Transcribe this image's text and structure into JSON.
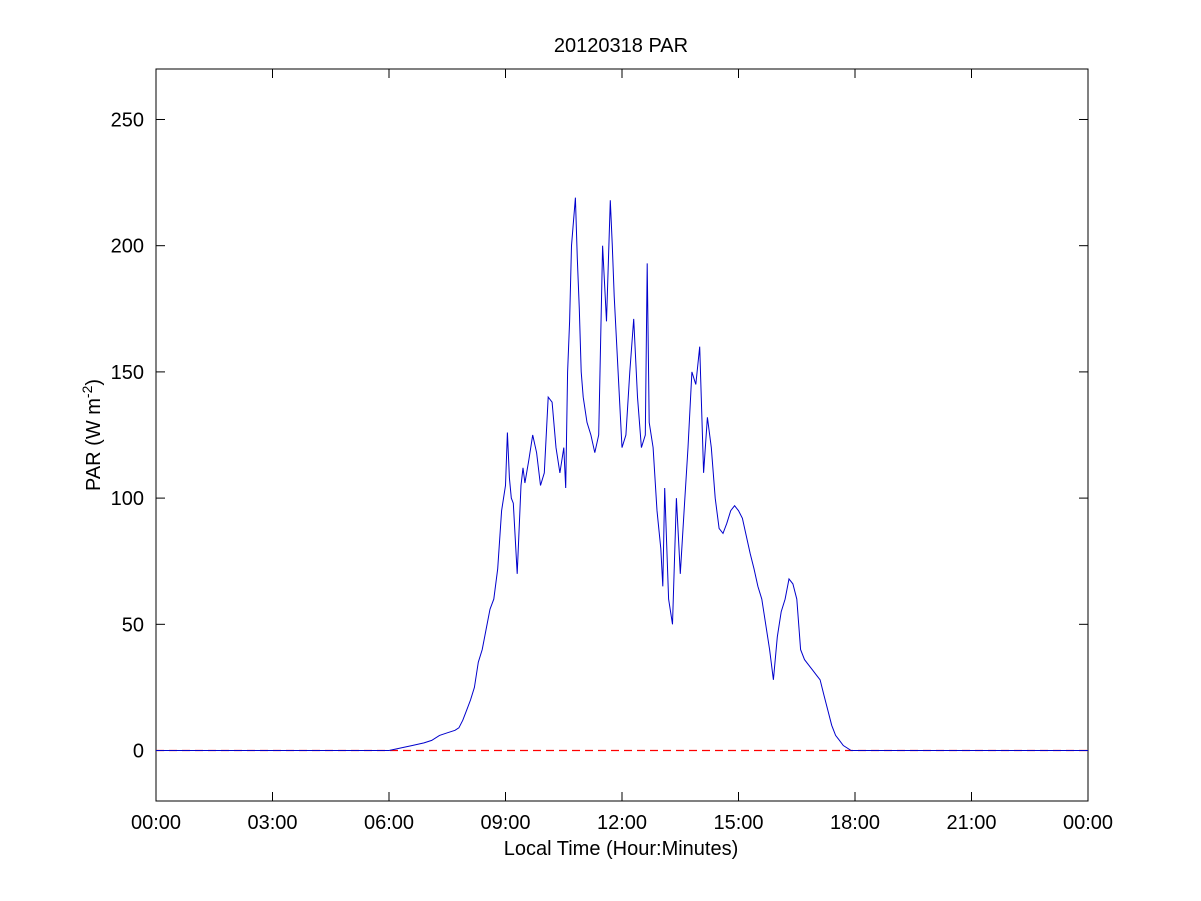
{
  "chart_data": {
    "type": "line",
    "title": "20120318 PAR",
    "xlabel": "Local Time (Hour:Minutes)",
    "ylabel_main": "PAR (W m",
    "ylabel_sup": "-2",
    "ylabel_end": ")",
    "xlim": [
      0,
      24
    ],
    "ylim": [
      -20,
      270
    ],
    "x_ticks": [
      0,
      3,
      6,
      9,
      12,
      15,
      18,
      21,
      24
    ],
    "x_tick_labels": [
      "00:00",
      "03:00",
      "06:00",
      "09:00",
      "12:00",
      "15:00",
      "18:00",
      "21:00",
      "00:00"
    ],
    "y_ticks": [
      0,
      50,
      100,
      150,
      200,
      250
    ],
    "y_tick_labels": [
      "0",
      "50",
      "100",
      "150",
      "200",
      "250"
    ],
    "grid": false,
    "colors": {
      "series": "#0000cc",
      "zero_line": "#ff0000"
    },
    "zero_line": {
      "y": 0,
      "style": "dashed"
    },
    "series": [
      {
        "x": [
          0.0,
          6.0,
          6.3,
          6.6,
          6.9,
          7.1,
          7.3,
          7.5,
          7.7,
          7.8,
          7.9,
          8.0,
          8.1,
          8.2,
          8.3,
          8.4,
          8.5,
          8.6,
          8.7,
          8.8,
          8.9,
          9.0,
          9.05,
          9.1,
          9.15,
          9.2,
          9.3,
          9.4,
          9.45,
          9.5,
          9.6,
          9.7,
          9.8,
          9.9,
          10.0,
          10.1,
          10.2,
          10.3,
          10.4,
          10.5,
          10.55,
          10.6,
          10.65,
          10.7,
          10.8,
          10.85,
          10.9,
          10.95,
          11.0,
          11.1,
          11.2,
          11.3,
          11.4,
          11.5,
          11.6,
          11.7,
          11.75,
          11.8,
          11.9,
          12.0,
          12.1,
          12.2,
          12.3,
          12.4,
          12.5,
          12.6,
          12.65,
          12.7,
          12.8,
          12.9,
          13.0,
          13.05,
          13.1,
          13.2,
          13.3,
          13.4,
          13.5,
          13.6,
          13.7,
          13.8,
          13.9,
          14.0,
          14.1,
          14.2,
          14.3,
          14.4,
          14.5,
          14.6,
          14.7,
          14.8,
          14.9,
          15.0,
          15.1,
          15.2,
          15.3,
          15.4,
          15.5,
          15.6,
          15.7,
          15.8,
          15.9,
          16.0,
          16.1,
          16.2,
          16.3,
          16.4,
          16.5,
          16.6,
          16.7,
          16.8,
          16.9,
          17.0,
          17.1,
          17.2,
          17.3,
          17.4,
          17.5,
          17.6,
          17.7,
          17.8,
          17.9,
          18.0,
          18.2,
          18.4,
          18.6,
          24.0
        ],
        "y": [
          0,
          0,
          1,
          2,
          3,
          4,
          6,
          7,
          8,
          9,
          12,
          16,
          20,
          25,
          35,
          40,
          48,
          56,
          60,
          72,
          95,
          105,
          126,
          108,
          100,
          98,
          70,
          105,
          112,
          106,
          115,
          125,
          118,
          105,
          110,
          140,
          138,
          120,
          110,
          120,
          104,
          150,
          170,
          200,
          219,
          195,
          175,
          150,
          140,
          130,
          125,
          118,
          125,
          200,
          170,
          218,
          200,
          180,
          150,
          120,
          125,
          150,
          171,
          140,
          120,
          125,
          193,
          130,
          120,
          95,
          80,
          65,
          104,
          60,
          50,
          100,
          70,
          95,
          120,
          150,
          145,
          160,
          110,
          132,
          120,
          100,
          88,
          86,
          90,
          95,
          97,
          95,
          92,
          85,
          78,
          72,
          65,
          60,
          50,
          40,
          28,
          45,
          55,
          60,
          68,
          66,
          60,
          40,
          36,
          34,
          32,
          30,
          28,
          22,
          16,
          10,
          6,
          4,
          2,
          1,
          0,
          0,
          0,
          0,
          0,
          0
        ]
      }
    ]
  }
}
